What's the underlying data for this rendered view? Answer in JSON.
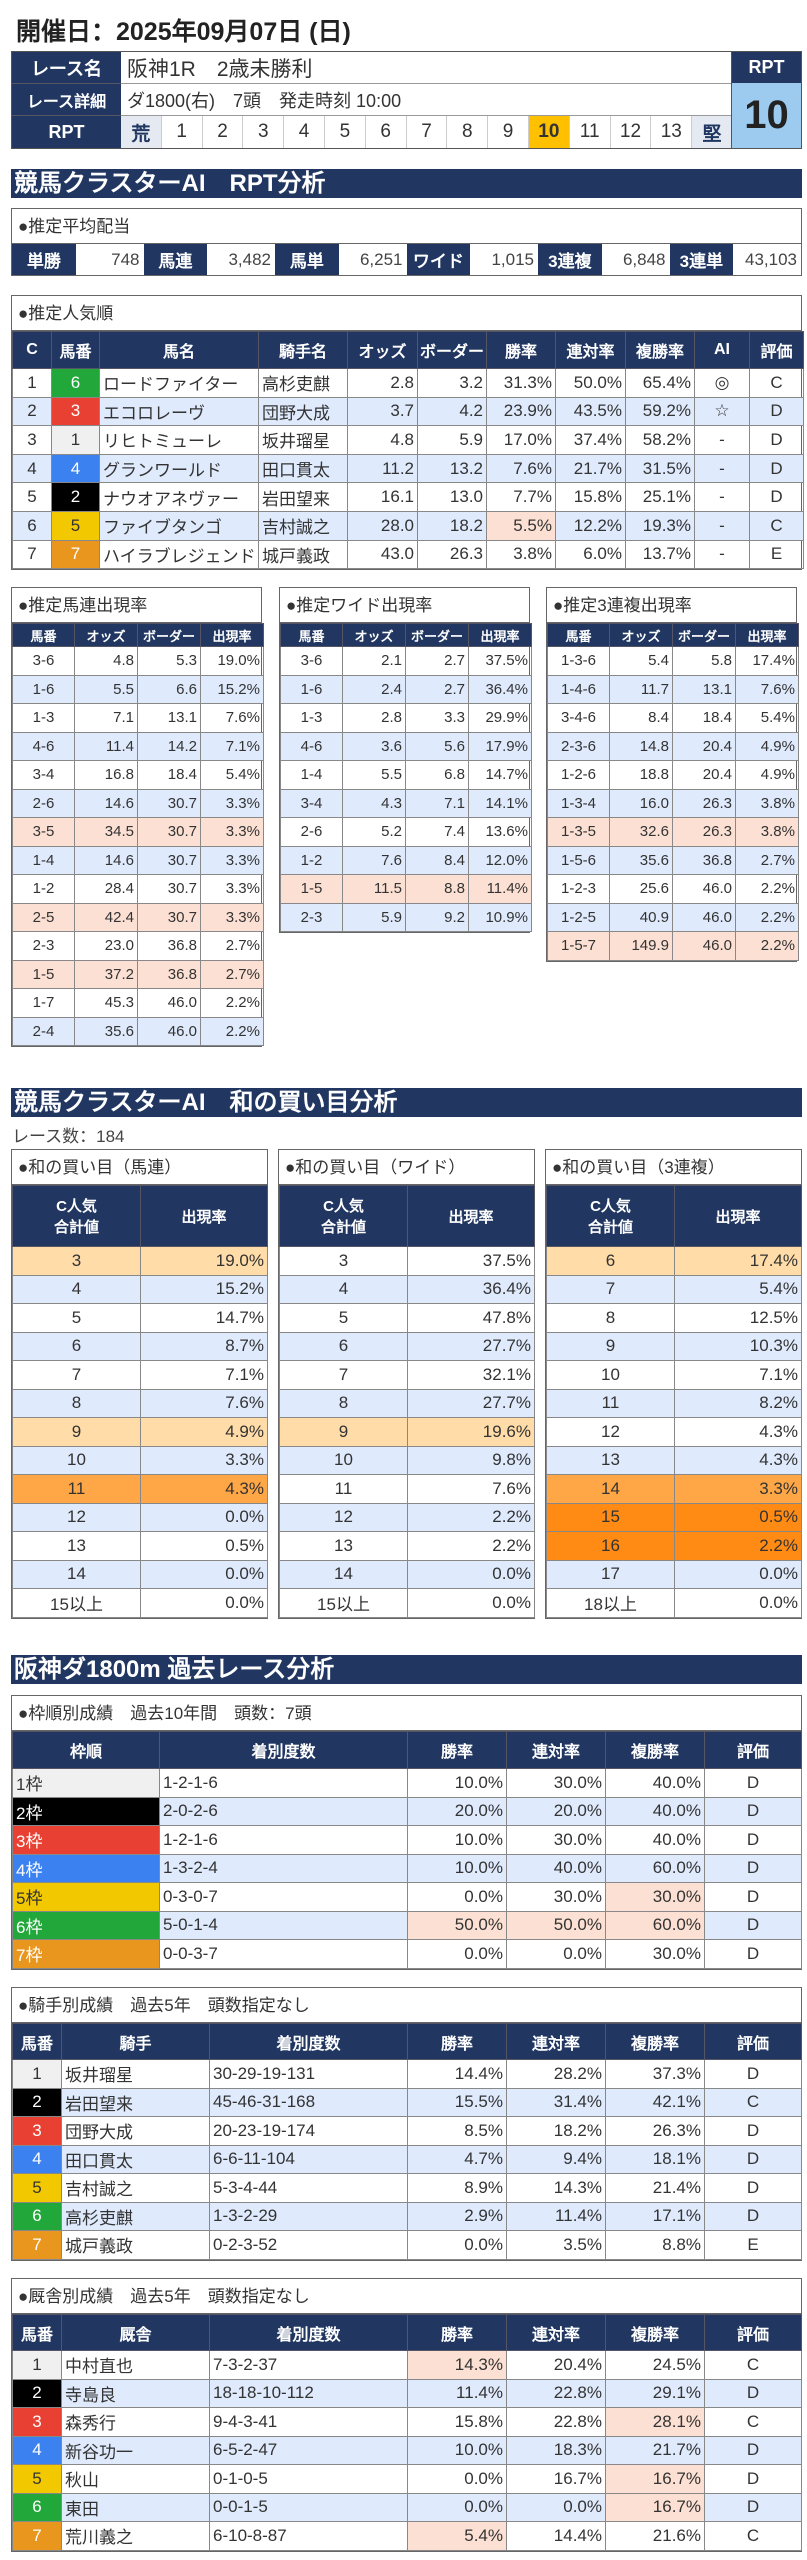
{
  "header": {
    "date": "開催日：2025年09月07日 (日)",
    "race_name_label": "レース名",
    "race_name": "阪神1R　2歳未勝利",
    "detail_label": "レース詳細",
    "detail": "ダ1800(右)　7頭　発走時刻 10:00",
    "rpt_label": "RPT",
    "rpt_scale": [
      "荒",
      "1",
      "2",
      "3",
      "4",
      "5",
      "6",
      "7",
      "8",
      "9",
      "10",
      "11",
      "12",
      "13",
      "堅"
    ],
    "rpt_selected": "10",
    "rpt_box_label": "RPT",
    "rpt_value": "10"
  },
  "colors": {
    "navy": "#213762",
    "waku": {
      "1": [
        "#f0f0f0",
        "#333"
      ],
      "2": [
        "#000000",
        "#fff"
      ],
      "3": [
        "#e84133",
        "#fff"
      ],
      "4": [
        "#3b82f0",
        "#fff"
      ],
      "5": [
        "#f2c800",
        "#333"
      ],
      "6": [
        "#22a83a",
        "#fff"
      ],
      "7": [
        "#e8961e",
        "#fff"
      ]
    }
  },
  "rpt": {
    "section_title": "競馬クラスターAI　RPT分析",
    "payout": {
      "title": "●推定平均配当",
      "items": [
        {
          "label": "単勝",
          "value": "748"
        },
        {
          "label": "馬連",
          "value": "3,482"
        },
        {
          "label": "馬単",
          "value": "6,251"
        },
        {
          "label": "ワイド",
          "value": "1,015"
        },
        {
          "label": "3連複",
          "value": "6,848"
        },
        {
          "label": "3連単",
          "value": "43,103"
        }
      ]
    },
    "popularity": {
      "title": "●推定人気順",
      "headers": [
        "C",
        "馬番",
        "馬名",
        "騎手名",
        "オッズ",
        "ボーダー",
        "勝率",
        "連対率",
        "複勝率",
        "AI",
        "評価"
      ],
      "rows": [
        {
          "cells": [
            "1",
            "6",
            "ロードファイター",
            "高杉吏麒",
            "2.8",
            "3.2",
            "31.3%",
            "50.0%",
            "65.4%",
            "◎",
            "C"
          ],
          "hl": []
        },
        {
          "cells": [
            "2",
            "3",
            "エコロレーヴ",
            "団野大成",
            "3.7",
            "4.2",
            "23.9%",
            "43.5%",
            "59.2%",
            "☆",
            "D"
          ],
          "hl": []
        },
        {
          "cells": [
            "3",
            "1",
            "リヒトミューレ",
            "坂井瑠星",
            "4.8",
            "5.9",
            "17.0%",
            "37.4%",
            "58.2%",
            "-",
            "D"
          ],
          "hl": []
        },
        {
          "cells": [
            "4",
            "4",
            "グランワールド",
            "田口貫太",
            "11.2",
            "13.2",
            "7.6%",
            "21.7%",
            "31.5%",
            "-",
            "D"
          ],
          "hl": []
        },
        {
          "cells": [
            "5",
            "2",
            "ナウオアネヴァー",
            "岩田望来",
            "16.1",
            "13.0",
            "7.7%",
            "15.8%",
            "25.1%",
            "-",
            "D"
          ],
          "hl": []
        },
        {
          "cells": [
            "6",
            "5",
            "ファイブタンゴ",
            "吉村誠之",
            "28.0",
            "18.2",
            "5.5%",
            "12.2%",
            "19.3%",
            "-",
            "C"
          ],
          "hl": [
            6
          ]
        },
        {
          "cells": [
            "7",
            "7",
            "ハイラブレジェンド",
            "城戸義政",
            "43.0",
            "26.3",
            "3.8%",
            "6.0%",
            "13.7%",
            "-",
            "E"
          ],
          "hl": []
        }
      ]
    },
    "umaren": {
      "title": "●推定馬連出現率",
      "headers": [
        "馬番",
        "オッズ",
        "ボーダー",
        "出現率"
      ],
      "rows": [
        {
          "cells": [
            "3-6",
            "4.8",
            "5.3",
            "19.0%"
          ]
        },
        {
          "cells": [
            "1-6",
            "5.5",
            "6.6",
            "15.2%"
          ]
        },
        {
          "cells": [
            "1-3",
            "7.1",
            "13.1",
            "7.6%"
          ]
        },
        {
          "cells": [
            "4-6",
            "11.4",
            "14.2",
            "7.1%"
          ]
        },
        {
          "cells": [
            "3-4",
            "16.8",
            "18.4",
            "5.4%"
          ]
        },
        {
          "cells": [
            "2-6",
            "14.6",
            "30.7",
            "3.3%"
          ]
        },
        {
          "cells": [
            "3-5",
            "34.5",
            "30.7",
            "3.3%"
          ],
          "row": "peach"
        },
        {
          "cells": [
            "1-4",
            "14.6",
            "30.7",
            "3.3%"
          ]
        },
        {
          "cells": [
            "1-2",
            "28.4",
            "30.7",
            "3.3%"
          ]
        },
        {
          "cells": [
            "2-5",
            "42.4",
            "30.7",
            "3.3%"
          ],
          "row": "peach"
        },
        {
          "cells": [
            "2-3",
            "23.0",
            "36.8",
            "2.7%"
          ]
        },
        {
          "cells": [
            "1-5",
            "37.2",
            "36.8",
            "2.7%"
          ],
          "row": "peach"
        },
        {
          "cells": [
            "1-7",
            "45.3",
            "46.0",
            "2.2%"
          ]
        },
        {
          "cells": [
            "2-4",
            "35.6",
            "46.0",
            "2.2%"
          ]
        }
      ]
    },
    "wide": {
      "title": "●推定ワイド出現率",
      "headers": [
        "馬番",
        "オッズ",
        "ボーダー",
        "出現率"
      ],
      "rows": [
        {
          "cells": [
            "3-6",
            "2.1",
            "2.7",
            "37.5%"
          ]
        },
        {
          "cells": [
            "1-6",
            "2.4",
            "2.7",
            "36.4%"
          ]
        },
        {
          "cells": [
            "1-3",
            "2.8",
            "3.3",
            "29.9%"
          ]
        },
        {
          "cells": [
            "4-6",
            "3.6",
            "5.6",
            "17.9%"
          ]
        },
        {
          "cells": [
            "1-4",
            "5.5",
            "6.8",
            "14.7%"
          ]
        },
        {
          "cells": [
            "3-4",
            "4.3",
            "7.1",
            "14.1%"
          ]
        },
        {
          "cells": [
            "2-6",
            "5.2",
            "7.4",
            "13.6%"
          ]
        },
        {
          "cells": [
            "1-2",
            "7.6",
            "8.4",
            "12.0%"
          ]
        },
        {
          "cells": [
            "1-5",
            "11.5",
            "8.8",
            "11.4%"
          ],
          "row": "peach"
        },
        {
          "cells": [
            "2-3",
            "5.9",
            "9.2",
            "10.9%"
          ]
        }
      ]
    },
    "sanrenpuku": {
      "title": "●推定3連複出現率",
      "headers": [
        "馬番",
        "オッズ",
        "ボーダー",
        "出現率"
      ],
      "rows": [
        {
          "cells": [
            "1-3-6",
            "5.4",
            "5.8",
            "17.4%"
          ]
        },
        {
          "cells": [
            "1-4-6",
            "11.7",
            "13.1",
            "7.6%"
          ]
        },
        {
          "cells": [
            "3-4-6",
            "8.4",
            "18.4",
            "5.4%"
          ]
        },
        {
          "cells": [
            "2-3-6",
            "14.8",
            "20.4",
            "4.9%"
          ]
        },
        {
          "cells": [
            "1-2-6",
            "18.8",
            "20.4",
            "4.9%"
          ]
        },
        {
          "cells": [
            "1-3-4",
            "16.0",
            "26.3",
            "3.8%"
          ]
        },
        {
          "cells": [
            "1-3-5",
            "32.6",
            "26.3",
            "3.8%"
          ],
          "row": "peach"
        },
        {
          "cells": [
            "1-5-6",
            "35.6",
            "36.8",
            "2.7%"
          ]
        },
        {
          "cells": [
            "1-2-3",
            "25.6",
            "46.0",
            "2.2%"
          ]
        },
        {
          "cells": [
            "1-2-5",
            "40.9",
            "46.0",
            "2.2%"
          ]
        },
        {
          "cells": [
            "1-5-7",
            "149.9",
            "46.0",
            "2.2%"
          ],
          "row": "peach"
        }
      ]
    }
  },
  "wa": {
    "section_title": "競馬クラスターAI　和の買い目分析",
    "race_count": "レース数：184",
    "headers": [
      "C人気\n合計値",
      "出現率"
    ],
    "umaren": {
      "title": "●和の買い目（馬連）",
      "rows": [
        {
          "cells": [
            "3",
            "19.0%"
          ],
          "row": "lo"
        },
        {
          "cells": [
            "4",
            "15.2%"
          ],
          "row": "alt"
        },
        {
          "cells": [
            "5",
            "14.7%"
          ]
        },
        {
          "cells": [
            "6",
            "8.7%"
          ],
          "row": "alt"
        },
        {
          "cells": [
            "7",
            "7.1%"
          ]
        },
        {
          "cells": [
            "8",
            "7.6%"
          ],
          "row": "alt"
        },
        {
          "cells": [
            "9",
            "4.9%"
          ],
          "row": "lo"
        },
        {
          "cells": [
            "10",
            "3.3%"
          ],
          "row": "alt"
        },
        {
          "cells": [
            "11",
            "4.3%"
          ],
          "row": "or"
        },
        {
          "cells": [
            "12",
            "0.0%"
          ],
          "row": "alt"
        },
        {
          "cells": [
            "13",
            "0.5%"
          ]
        },
        {
          "cells": [
            "14",
            "0.0%"
          ],
          "row": "alt"
        },
        {
          "cells": [
            "15以上",
            "0.0%"
          ]
        }
      ]
    },
    "wide": {
      "title": "●和の買い目（ワイド）",
      "rows": [
        {
          "cells": [
            "3",
            "37.5%"
          ]
        },
        {
          "cells": [
            "4",
            "36.4%"
          ],
          "row": "alt"
        },
        {
          "cells": [
            "5",
            "47.8%"
          ]
        },
        {
          "cells": [
            "6",
            "27.7%"
          ],
          "row": "alt"
        },
        {
          "cells": [
            "7",
            "32.1%"
          ]
        },
        {
          "cells": [
            "8",
            "27.7%"
          ],
          "row": "alt"
        },
        {
          "cells": [
            "9",
            "19.6%"
          ],
          "row": "lo"
        },
        {
          "cells": [
            "10",
            "9.8%"
          ],
          "row": "alt"
        },
        {
          "cells": [
            "11",
            "7.6%"
          ]
        },
        {
          "cells": [
            "12",
            "2.2%"
          ],
          "row": "alt"
        },
        {
          "cells": [
            "13",
            "2.2%"
          ]
        },
        {
          "cells": [
            "14",
            "0.0%"
          ],
          "row": "alt"
        },
        {
          "cells": [
            "15以上",
            "0.0%"
          ]
        }
      ]
    },
    "sanrenpuku": {
      "title": "●和の買い目（3連複）",
      "rows": [
        {
          "cells": [
            "6",
            "17.4%"
          ],
          "row": "lo"
        },
        {
          "cells": [
            "7",
            "5.4%"
          ],
          "row": "alt"
        },
        {
          "cells": [
            "8",
            "12.5%"
          ]
        },
        {
          "cells": [
            "9",
            "10.3%"
          ],
          "row": "alt"
        },
        {
          "cells": [
            "10",
            "7.1%"
          ]
        },
        {
          "cells": [
            "11",
            "8.2%"
          ],
          "row": "alt"
        },
        {
          "cells": [
            "12",
            "4.3%"
          ]
        },
        {
          "cells": [
            "13",
            "4.3%"
          ],
          "row": "alt"
        },
        {
          "cells": [
            "14",
            "3.3%"
          ],
          "row": "or"
        },
        {
          "cells": [
            "15",
            "0.5%"
          ],
          "row": "dor"
        },
        {
          "cells": [
            "16",
            "2.2%"
          ],
          "row": "dor"
        },
        {
          "cells": [
            "17",
            "0.0%"
          ],
          "row": "alt"
        },
        {
          "cells": [
            "18以上",
            "0.0%"
          ]
        }
      ]
    }
  },
  "past": {
    "section_title": "阪神ダ1800m 過去レース分析",
    "frame": {
      "title": "●枠順別成績　過去10年間　頭数：7頭",
      "headers": [
        "枠順",
        "着別度数",
        "勝率",
        "連対率",
        "複勝率",
        "評価"
      ],
      "rows": [
        {
          "cells": [
            "1枠",
            "1-2-1-6",
            "10.0%",
            "30.0%",
            "40.0%",
            "D"
          ],
          "hl": []
        },
        {
          "cells": [
            "2枠",
            "2-0-2-6",
            "20.0%",
            "20.0%",
            "40.0%",
            "D"
          ],
          "hl": []
        },
        {
          "cells": [
            "3枠",
            "1-2-1-6",
            "10.0%",
            "30.0%",
            "40.0%",
            "D"
          ],
          "hl": []
        },
        {
          "cells": [
            "4枠",
            "1-3-2-4",
            "10.0%",
            "40.0%",
            "60.0%",
            "D"
          ],
          "hl": []
        },
        {
          "cells": [
            "5枠",
            "0-3-0-7",
            "0.0%",
            "30.0%",
            "30.0%",
            "D"
          ],
          "hl": [
            4
          ]
        },
        {
          "cells": [
            "6枠",
            "5-0-1-4",
            "50.0%",
            "50.0%",
            "60.0%",
            "D"
          ],
          "hl": [
            2,
            3,
            4
          ]
        },
        {
          "cells": [
            "7枠",
            "0-0-3-7",
            "0.0%",
            "0.0%",
            "30.0%",
            "D"
          ],
          "hl": []
        }
      ]
    },
    "jockey": {
      "title": "●騎手別成績　過去5年　頭数指定なし",
      "headers": [
        "馬番",
        "騎手",
        "着別度数",
        "勝率",
        "連対率",
        "複勝率",
        "評価"
      ],
      "rows": [
        {
          "cells": [
            "1",
            "坂井瑠星",
            "30-29-19-131",
            "14.4%",
            "28.2%",
            "37.3%",
            "D"
          ],
          "hl": []
        },
        {
          "cells": [
            "2",
            "岩田望来",
            "45-46-31-168",
            "15.5%",
            "31.4%",
            "42.1%",
            "C"
          ],
          "hl": []
        },
        {
          "cells": [
            "3",
            "団野大成",
            "20-23-19-174",
            "8.5%",
            "18.2%",
            "26.3%",
            "D"
          ],
          "hl": []
        },
        {
          "cells": [
            "4",
            "田口貫太",
            "6-6-11-104",
            "4.7%",
            "9.4%",
            "18.1%",
            "D"
          ],
          "hl": []
        },
        {
          "cells": [
            "5",
            "吉村誠之",
            "5-3-4-44",
            "8.9%",
            "14.3%",
            "21.4%",
            "D"
          ],
          "hl": []
        },
        {
          "cells": [
            "6",
            "高杉吏麒",
            "1-3-2-29",
            "2.9%",
            "11.4%",
            "17.1%",
            "D"
          ],
          "hl": []
        },
        {
          "cells": [
            "7",
            "城戸義政",
            "0-2-3-52",
            "0.0%",
            "3.5%",
            "8.8%",
            "E"
          ],
          "hl": []
        }
      ]
    },
    "trainer": {
      "title": "●厩舎別成績　過去5年　頭数指定なし",
      "headers": [
        "馬番",
        "厩舎",
        "着別度数",
        "勝率",
        "連対率",
        "複勝率",
        "評価"
      ],
      "rows": [
        {
          "cells": [
            "1",
            "中村直也",
            "7-3-2-37",
            "14.3%",
            "20.4%",
            "24.5%",
            "C"
          ],
          "hl": [
            3
          ]
        },
        {
          "cells": [
            "2",
            "寺島良",
            "18-18-10-112",
            "11.4%",
            "22.8%",
            "29.1%",
            "D"
          ],
          "hl": []
        },
        {
          "cells": [
            "3",
            "森秀行",
            "9-4-3-41",
            "15.8%",
            "22.8%",
            "28.1%",
            "C"
          ],
          "hl": [
            5
          ]
        },
        {
          "cells": [
            "4",
            "新谷功一",
            "6-5-2-47",
            "10.0%",
            "18.3%",
            "21.7%",
            "D"
          ],
          "hl": []
        },
        {
          "cells": [
            "5",
            "秋山",
            "0-1-0-5",
            "0.0%",
            "16.7%",
            "16.7%",
            "D"
          ],
          "hl": [
            5
          ]
        },
        {
          "cells": [
            "6",
            "東田",
            "0-0-1-5",
            "0.0%",
            "0.0%",
            "16.7%",
            "D"
          ],
          "hl": [
            5
          ]
        },
        {
          "cells": [
            "7",
            "荒川義之",
            "6-10-8-87",
            "5.4%",
            "14.4%",
            "21.6%",
            "C"
          ],
          "hl": [
            3
          ]
        }
      ]
    }
  }
}
